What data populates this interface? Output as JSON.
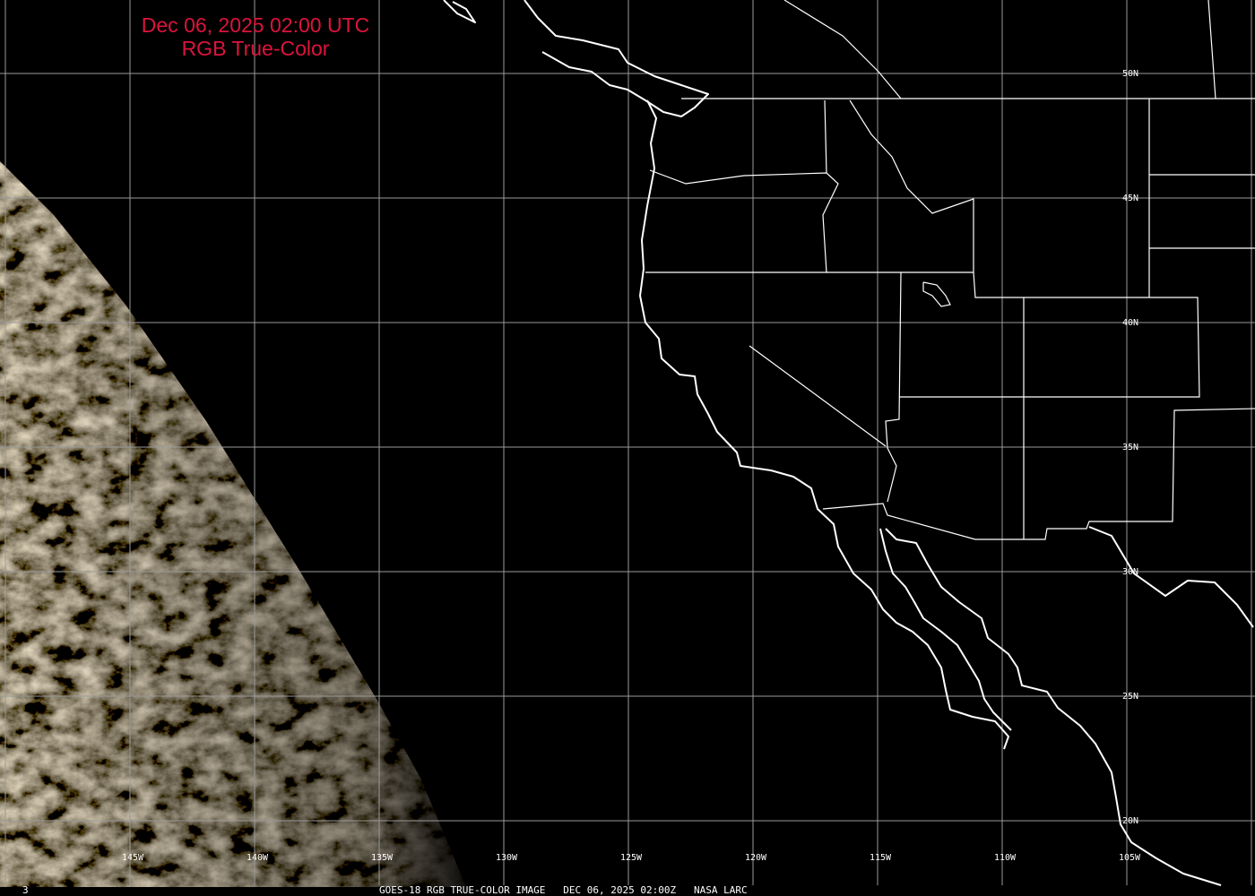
{
  "title": {
    "line1": "Dec 06, 2025 02:00 UTC",
    "line2": "RGB True-Color"
  },
  "grid": {
    "longitude_labels": [
      "145W",
      "140W",
      "135W",
      "130W",
      "125W",
      "120W",
      "115W",
      "110W",
      "105W"
    ],
    "latitude_labels": [
      "50N",
      "45N",
      "40N",
      "35N",
      "30N",
      "25N",
      "20N"
    ]
  },
  "footer": {
    "frame": "3",
    "caption": "GOES-18 RGB TRUE-COLOR IMAGE   DEC 06, 2025 02:00Z   NASA LARC"
  }
}
